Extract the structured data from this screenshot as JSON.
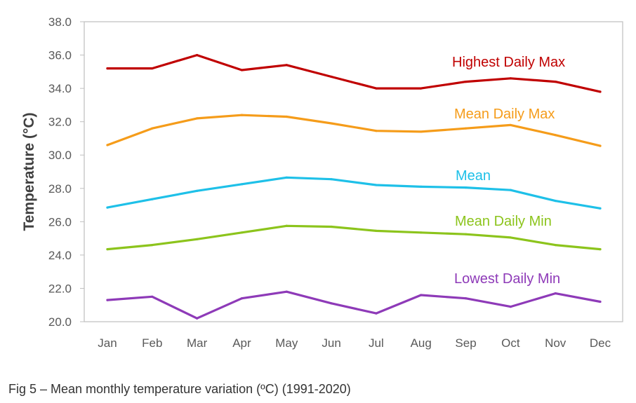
{
  "caption": "Fig 5 – Mean monthly temperature variation (ºC) (1991-2020)",
  "chart_data": {
    "type": "line",
    "title": "",
    "xlabel": "",
    "ylabel": "Temperature (°C)",
    "ylim": [
      20.0,
      38.0
    ],
    "yticks": [
      "20.0",
      "22.0",
      "24.0",
      "26.0",
      "28.0",
      "30.0",
      "32.0",
      "34.0",
      "36.0",
      "38.0"
    ],
    "grid": false,
    "categories": [
      "Jan",
      "Feb",
      "Mar",
      "Apr",
      "May",
      "Jun",
      "Jul",
      "Aug",
      "Sep",
      "Oct",
      "Nov",
      "Dec"
    ],
    "series": [
      {
        "name": "Highest Daily Max",
        "color": "#c00000",
        "values": [
          35.2,
          35.2,
          36.0,
          35.1,
          35.4,
          34.7,
          34.0,
          34.0,
          34.4,
          34.6,
          34.4,
          33.8
        ]
      },
      {
        "name": "Mean Daily Max",
        "color": "#f59c1a",
        "values": [
          30.6,
          31.6,
          32.2,
          32.4,
          32.3,
          31.9,
          31.45,
          31.4,
          31.6,
          31.8,
          31.2,
          30.55
        ]
      },
      {
        "name": "Mean",
        "color": "#1ec0e8",
        "values": [
          26.85,
          27.35,
          27.85,
          28.25,
          28.65,
          28.55,
          28.2,
          28.1,
          28.05,
          27.9,
          27.25,
          26.8
        ]
      },
      {
        "name": "Mean Daily Min",
        "color": "#8cc41c",
        "values": [
          24.35,
          24.6,
          24.95,
          25.35,
          25.75,
          25.7,
          25.45,
          25.35,
          25.25,
          25.05,
          24.6,
          24.35
        ]
      },
      {
        "name": "Lowest Daily Min",
        "color": "#8e3ab8",
        "values": [
          21.3,
          21.5,
          20.2,
          21.4,
          21.8,
          21.1,
          20.5,
          21.6,
          21.4,
          20.9,
          21.7,
          21.2
        ]
      }
    ]
  }
}
